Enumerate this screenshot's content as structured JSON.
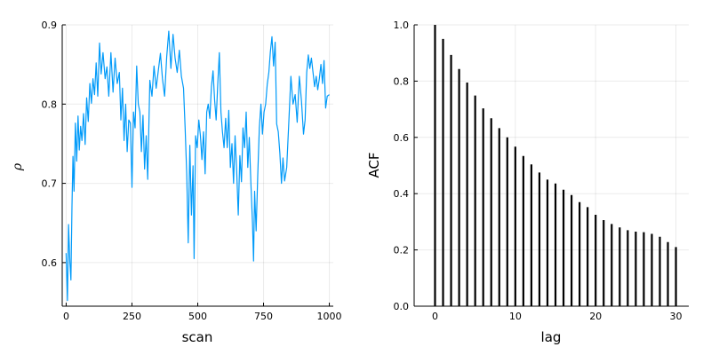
{
  "chart_data": [
    {
      "type": "line",
      "title": "",
      "xlabel": "scan",
      "ylabel": "ρ",
      "xlim": [
        -15,
        1015
      ],
      "ylim": [
        0.545,
        0.9
      ],
      "xticks": [
        0,
        250,
        500,
        750,
        1000
      ],
      "xtick_labels": [
        "0",
        "250",
        "500",
        "750",
        "1000"
      ],
      "yticks": [
        0.6,
        0.7,
        0.8,
        0.9
      ],
      "ytick_labels": [
        "0.6",
        "0.7",
        "0.8",
        "0.9"
      ],
      "grid": true,
      "legend": "none",
      "series": [
        {
          "color": "#009af9",
          "points": [
            [
              0,
              0.612
            ],
            [
              5,
              0.552
            ],
            [
              9,
              0.648
            ],
            [
              14,
              0.601
            ],
            [
              18,
              0.578
            ],
            [
              22,
              0.672
            ],
            [
              26,
              0.734
            ],
            [
              30,
              0.69
            ],
            [
              35,
              0.776
            ],
            [
              40,
              0.728
            ],
            [
              45,
              0.785
            ],
            [
              50,
              0.742
            ],
            [
              55,
              0.772
            ],
            [
              60,
              0.754
            ],
            [
              66,
              0.788
            ],
            [
              72,
              0.749
            ],
            [
              78,
              0.808
            ],
            [
              84,
              0.778
            ],
            [
              90,
              0.826
            ],
            [
              96,
              0.801
            ],
            [
              102,
              0.832
            ],
            [
              108,
              0.812
            ],
            [
              114,
              0.852
            ],
            [
              120,
              0.81
            ],
            [
              127,
              0.877
            ],
            [
              133,
              0.838
            ],
            [
              140,
              0.865
            ],
            [
              148,
              0.832
            ],
            [
              155,
              0.847
            ],
            [
              162,
              0.81
            ],
            [
              170,
              0.865
            ],
            [
              178,
              0.815
            ],
            [
              186,
              0.858
            ],
            [
              194,
              0.826
            ],
            [
              202,
              0.84
            ],
            [
              208,
              0.78
            ],
            [
              214,
              0.82
            ],
            [
              220,
              0.754
            ],
            [
              226,
              0.8
            ],
            [
              232,
              0.74
            ],
            [
              238,
              0.78
            ],
            [
              244,
              0.776
            ],
            [
              250,
              0.695
            ],
            [
              256,
              0.79
            ],
            [
              262,
              0.77
            ],
            [
              268,
              0.848
            ],
            [
              274,
              0.8
            ],
            [
              280,
              0.79
            ],
            [
              286,
              0.74
            ],
            [
              292,
              0.786
            ],
            [
              298,
              0.718
            ],
            [
              304,
              0.76
            ],
            [
              310,
              0.705
            ],
            [
              318,
              0.83
            ],
            [
              326,
              0.81
            ],
            [
              334,
              0.848
            ],
            [
              342,
              0.82
            ],
            [
              350,
              0.842
            ],
            [
              358,
              0.864
            ],
            [
              366,
              0.832
            ],
            [
              374,
              0.81
            ],
            [
              382,
              0.86
            ],
            [
              390,
              0.892
            ],
            [
              398,
              0.845
            ],
            [
              406,
              0.888
            ],
            [
              414,
              0.858
            ],
            [
              422,
              0.84
            ],
            [
              430,
              0.868
            ],
            [
              438,
              0.835
            ],
            [
              446,
              0.82
            ],
            [
              452,
              0.77
            ],
            [
              458,
              0.712
            ],
            [
              464,
              0.625
            ],
            [
              470,
              0.748
            ],
            [
              476,
              0.66
            ],
            [
              482,
              0.722
            ],
            [
              486,
              0.605
            ],
            [
              492,
              0.76
            ],
            [
              498,
              0.745
            ],
            [
              504,
              0.78
            ],
            [
              510,
              0.76
            ],
            [
              516,
              0.73
            ],
            [
              522,
              0.765
            ],
            [
              528,
              0.712
            ],
            [
              534,
              0.79
            ],
            [
              540,
              0.8
            ],
            [
              546,
              0.782
            ],
            [
              552,
              0.822
            ],
            [
              558,
              0.842
            ],
            [
              564,
              0.805
            ],
            [
              570,
              0.78
            ],
            [
              576,
              0.825
            ],
            [
              582,
              0.865
            ],
            [
              588,
              0.79
            ],
            [
              594,
              0.765
            ],
            [
              600,
              0.745
            ],
            [
              606,
              0.782
            ],
            [
              612,
              0.745
            ],
            [
              618,
              0.792
            ],
            [
              624,
              0.72
            ],
            [
              630,
              0.75
            ],
            [
              636,
              0.7
            ],
            [
              642,
              0.76
            ],
            [
              648,
              0.716
            ],
            [
              654,
              0.66
            ],
            [
              660,
              0.735
            ],
            [
              666,
              0.702
            ],
            [
              672,
              0.77
            ],
            [
              678,
              0.745
            ],
            [
              684,
              0.79
            ],
            [
              690,
              0.72
            ],
            [
              696,
              0.758
            ],
            [
              702,
              0.7
            ],
            [
              708,
              0.65
            ],
            [
              712,
              0.602
            ],
            [
              716,
              0.69
            ],
            [
              722,
              0.64
            ],
            [
              728,
              0.71
            ],
            [
              734,
              0.77
            ],
            [
              740,
              0.8
            ],
            [
              746,
              0.762
            ],
            [
              752,
              0.79
            ],
            [
              758,
              0.8
            ],
            [
              764,
              0.825
            ],
            [
              770,
              0.84
            ],
            [
              776,
              0.866
            ],
            [
              782,
              0.885
            ],
            [
              788,
              0.848
            ],
            [
              794,
              0.878
            ],
            [
              800,
              0.775
            ],
            [
              806,
              0.765
            ],
            [
              812,
              0.738
            ],
            [
              818,
              0.7
            ],
            [
              824,
              0.732
            ],
            [
              830,
              0.703
            ],
            [
              838,
              0.72
            ],
            [
              846,
              0.778
            ],
            [
              854,
              0.835
            ],
            [
              862,
              0.8
            ],
            [
              870,
              0.812
            ],
            [
              878,
              0.777
            ],
            [
              886,
              0.835
            ],
            [
              894,
              0.804
            ],
            [
              902,
              0.762
            ],
            [
              908,
              0.78
            ],
            [
              914,
              0.84
            ],
            [
              920,
              0.862
            ],
            [
              926,
              0.845
            ],
            [
              932,
              0.858
            ],
            [
              938,
              0.84
            ],
            [
              944,
              0.822
            ],
            [
              950,
              0.835
            ],
            [
              956,
              0.818
            ],
            [
              962,
              0.832
            ],
            [
              968,
              0.85
            ],
            [
              974,
              0.826
            ],
            [
              980,
              0.855
            ],
            [
              986,
              0.795
            ],
            [
              992,
              0.81
            ],
            [
              1000,
              0.812
            ]
          ]
        }
      ]
    },
    {
      "type": "bar",
      "title": "",
      "xlabel": "lag",
      "ylabel": "ACF",
      "xlim": [
        -2.6,
        31.6
      ],
      "ylim": [
        0,
        1.0
      ],
      "xticks": [
        0,
        10,
        20,
        30
      ],
      "xtick_labels": [
        "0",
        "10",
        "20",
        "30"
      ],
      "yticks": [
        0,
        0.2,
        0.4,
        0.6,
        0.8,
        1.0
      ],
      "ytick_labels": [
        "0.0",
        "0.2",
        "0.4",
        "0.6",
        "0.8",
        "1.0"
      ],
      "grid": true,
      "legend": "none",
      "color": "#000000",
      "x": [
        0,
        1,
        2,
        3,
        4,
        5,
        6,
        7,
        8,
        9,
        10,
        11,
        12,
        13,
        14,
        15,
        16,
        17,
        18,
        19,
        20,
        21,
        22,
        23,
        24,
        25,
        26,
        27,
        28,
        29,
        30
      ],
      "values": [
        1.0,
        0.95,
        0.893,
        0.843,
        0.795,
        0.749,
        0.703,
        0.668,
        0.633,
        0.6,
        0.567,
        0.534,
        0.504,
        0.475,
        0.45,
        0.436,
        0.414,
        0.395,
        0.37,
        0.352,
        0.325,
        0.306,
        0.292,
        0.28,
        0.27,
        0.265,
        0.263,
        0.257,
        0.247,
        0.228,
        0.21
      ]
    }
  ]
}
